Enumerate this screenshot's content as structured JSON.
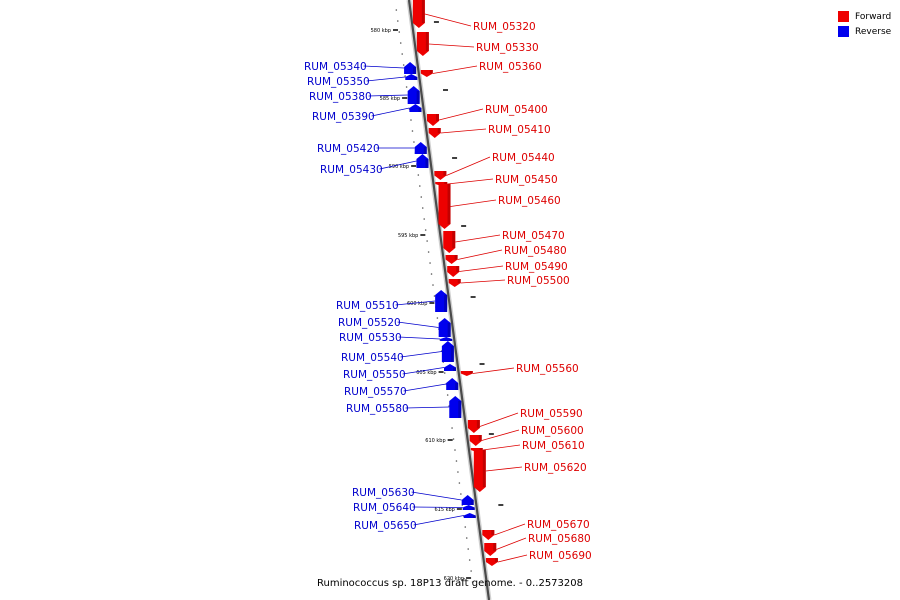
{
  "legend": {
    "forward_label": "Forward",
    "reverse_label": "Reverse",
    "forward_color": "#ee0000",
    "reverse_color": "#0000ee"
  },
  "caption": "Ruminococcus sp. 18P13 draft genome. - 0..2573208",
  "ticks": [
    {
      "label": "580 kbp"
    },
    {
      "label": "585 kbp"
    },
    {
      "label": "590 kbp"
    },
    {
      "label": "595 kbp"
    },
    {
      "label": "600 kbp"
    },
    {
      "label": "605 kbp"
    },
    {
      "label": "610 kbp"
    },
    {
      "label": "615 kbp"
    },
    {
      "label": "620 kbp"
    }
  ],
  "genes": [
    {
      "name": "RUM_05320",
      "strand": "forward"
    },
    {
      "name": "RUM_05330",
      "strand": "forward"
    },
    {
      "name": "RUM_05360",
      "strand": "forward"
    },
    {
      "name": "RUM_05340",
      "strand": "reverse"
    },
    {
      "name": "RUM_05350",
      "strand": "reverse"
    },
    {
      "name": "RUM_05380",
      "strand": "reverse"
    },
    {
      "name": "RUM_05390",
      "strand": "reverse"
    },
    {
      "name": "RUM_05400",
      "strand": "forward"
    },
    {
      "name": "RUM_05410",
      "strand": "forward"
    },
    {
      "name": "RUM_05420",
      "strand": "reverse"
    },
    {
      "name": "RUM_05430",
      "strand": "reverse"
    },
    {
      "name": "RUM_05440",
      "strand": "forward"
    },
    {
      "name": "RUM_05450",
      "strand": "forward"
    },
    {
      "name": "RUM_05460",
      "strand": "forward"
    },
    {
      "name": "RUM_05470",
      "strand": "forward"
    },
    {
      "name": "RUM_05480",
      "strand": "forward"
    },
    {
      "name": "RUM_05490",
      "strand": "forward"
    },
    {
      "name": "RUM_05500",
      "strand": "forward"
    },
    {
      "name": "RUM_05510",
      "strand": "reverse"
    },
    {
      "name": "RUM_05520",
      "strand": "reverse"
    },
    {
      "name": "RUM_05530",
      "strand": "reverse"
    },
    {
      "name": "RUM_05540",
      "strand": "reverse"
    },
    {
      "name": "RUM_05550",
      "strand": "reverse"
    },
    {
      "name": "RUM_05570",
      "strand": "reverse"
    },
    {
      "name": "RUM_05580",
      "strand": "reverse"
    },
    {
      "name": "RUM_05560",
      "strand": "forward"
    },
    {
      "name": "RUM_05590",
      "strand": "forward"
    },
    {
      "name": "RUM_05600",
      "strand": "forward"
    },
    {
      "name": "RUM_05610",
      "strand": "forward"
    },
    {
      "name": "RUM_05620",
      "strand": "forward"
    },
    {
      "name": "RUM_05630",
      "strand": "reverse"
    },
    {
      "name": "RUM_05640",
      "strand": "reverse"
    },
    {
      "name": "RUM_05650",
      "strand": "reverse"
    },
    {
      "name": "RUM_05670",
      "strand": "forward"
    },
    {
      "name": "RUM_05680",
      "strand": "forward"
    },
    {
      "name": "RUM_05690",
      "strand": "forward"
    }
  ]
}
